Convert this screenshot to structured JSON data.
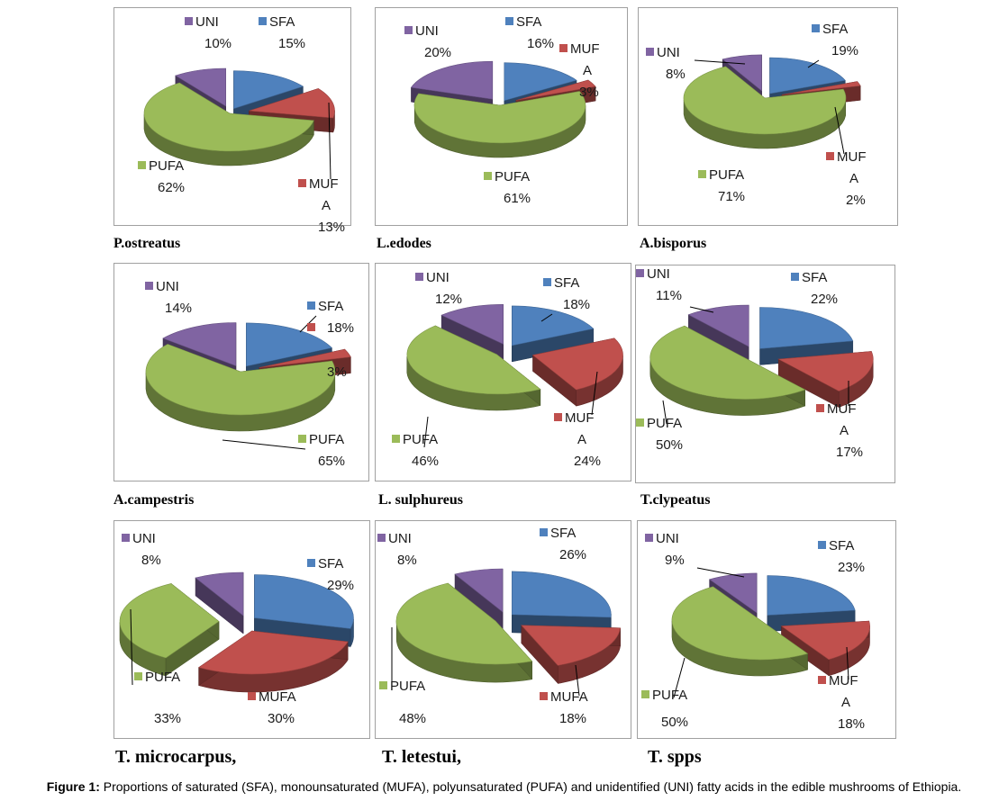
{
  "figure": {
    "caption_prefix": "Figure 1:",
    "caption_text": " Proportions of saturated (SFA), monounsaturated (MUFA), polyunsaturated (PUFA) and unidentified (UNI) fatty acids in the edible mushrooms of Ethiopia."
  },
  "colors": {
    "SFA": "#4f81bd",
    "MUFA": "#c0504d",
    "PUFA": "#9bbb59",
    "UNI": "#8064a2"
  },
  "chart_data": [
    {
      "type": "pie",
      "species": "P.ostreatus",
      "categories": [
        "SFA",
        "MUFA",
        "PUFA",
        "UNI"
      ],
      "values": [
        15,
        13,
        62,
        10
      ],
      "labels": [
        {
          "name": "SFA",
          "value": "15%"
        },
        {
          "name": "MUF A",
          "value": "13%"
        },
        {
          "name": "PUFA",
          "value": "62%"
        },
        {
          "name": "UNI",
          "value": "10%"
        }
      ]
    },
    {
      "type": "pie",
      "species": "L.edodes",
      "categories": [
        "SFA",
        "MUFA",
        "PUFA",
        "UNI"
      ],
      "values": [
        16,
        3,
        61,
        20
      ],
      "labels": [
        {
          "name": "SFA",
          "value": "16%"
        },
        {
          "name": "MUF A",
          "value": "3%"
        },
        {
          "name": "PUFA",
          "value": "61%"
        },
        {
          "name": "UNI",
          "value": "20%"
        }
      ]
    },
    {
      "type": "pie",
      "species": "A.bisporus",
      "categories": [
        "SFA",
        "MUFA",
        "PUFA",
        "UNI"
      ],
      "values": [
        19,
        2,
        71,
        8
      ],
      "labels": [
        {
          "name": "SFA",
          "value": "19%"
        },
        {
          "name": "MUF A",
          "value": "2%"
        },
        {
          "name": "PUFA",
          "value": "71%"
        },
        {
          "name": "UNI",
          "value": "8%"
        }
      ]
    },
    {
      "type": "pie",
      "species": "A.campestris",
      "categories": [
        "SFA",
        "MUFA",
        "PUFA",
        "UNI"
      ],
      "values": [
        18,
        3,
        65,
        14
      ],
      "labels": [
        {
          "name": "SFA",
          "value": "18%"
        },
        {
          "name": "",
          "value": "3%"
        },
        {
          "name": "PUFA",
          "value": "65%"
        },
        {
          "name": "UNI",
          "value": "14%"
        }
      ]
    },
    {
      "type": "pie",
      "species": "L. sulphureus",
      "categories": [
        "SFA",
        "MUFA",
        "PUFA",
        "UNI"
      ],
      "values": [
        18,
        24,
        46,
        12
      ],
      "labels": [
        {
          "name": "SFA",
          "value": "18%"
        },
        {
          "name": "MUF A",
          "value": "24%"
        },
        {
          "name": "PUFA",
          "value": "46%"
        },
        {
          "name": "UNI",
          "value": "12%"
        }
      ]
    },
    {
      "type": "pie",
      "species": "T.clypeatus",
      "categories": [
        "SFA",
        "MUFA",
        "PUFA",
        "UNI"
      ],
      "values": [
        22,
        17,
        50,
        11
      ],
      "labels": [
        {
          "name": "SFA",
          "value": "22%"
        },
        {
          "name": "MUF A",
          "value": "17%"
        },
        {
          "name": "PUFA",
          "value": "50%"
        },
        {
          "name": "UNI",
          "value": "11%"
        }
      ]
    },
    {
      "type": "pie",
      "species": "T. microcarpus,",
      "categories": [
        "SFA",
        "MUFA",
        "PUFA",
        "UNI"
      ],
      "values": [
        29,
        30,
        33,
        8
      ],
      "labels": [
        {
          "name": "SFA",
          "value": "29%"
        },
        {
          "name": "MUFA",
          "value": "30%"
        },
        {
          "name": "PUFA",
          "value": "33%"
        },
        {
          "name": "UNI",
          "value": "8%"
        }
      ]
    },
    {
      "type": "pie",
      "species": "T. letestui,",
      "categories": [
        "SFA",
        "MUFA",
        "PUFA",
        "UNI"
      ],
      "values": [
        26,
        18,
        48,
        8
      ],
      "labels": [
        {
          "name": "SFA",
          "value": "26%"
        },
        {
          "name": "MUFA",
          "value": "18%"
        },
        {
          "name": "PUFA",
          "value": "48%"
        },
        {
          "name": "UNI",
          "value": "8%"
        }
      ]
    },
    {
      "type": "pie",
      "species": "T. spps",
      "categories": [
        "SFA",
        "MUFA",
        "PUFA",
        "UNI"
      ],
      "values": [
        23,
        18,
        50,
        9
      ],
      "labels": [
        {
          "name": "SFA",
          "value": "23%"
        },
        {
          "name": "MUF A",
          "value": "18%"
        },
        {
          "name": "PUFA",
          "value": "50%"
        },
        {
          "name": "UNI",
          "value": "9%"
        }
      ]
    }
  ]
}
